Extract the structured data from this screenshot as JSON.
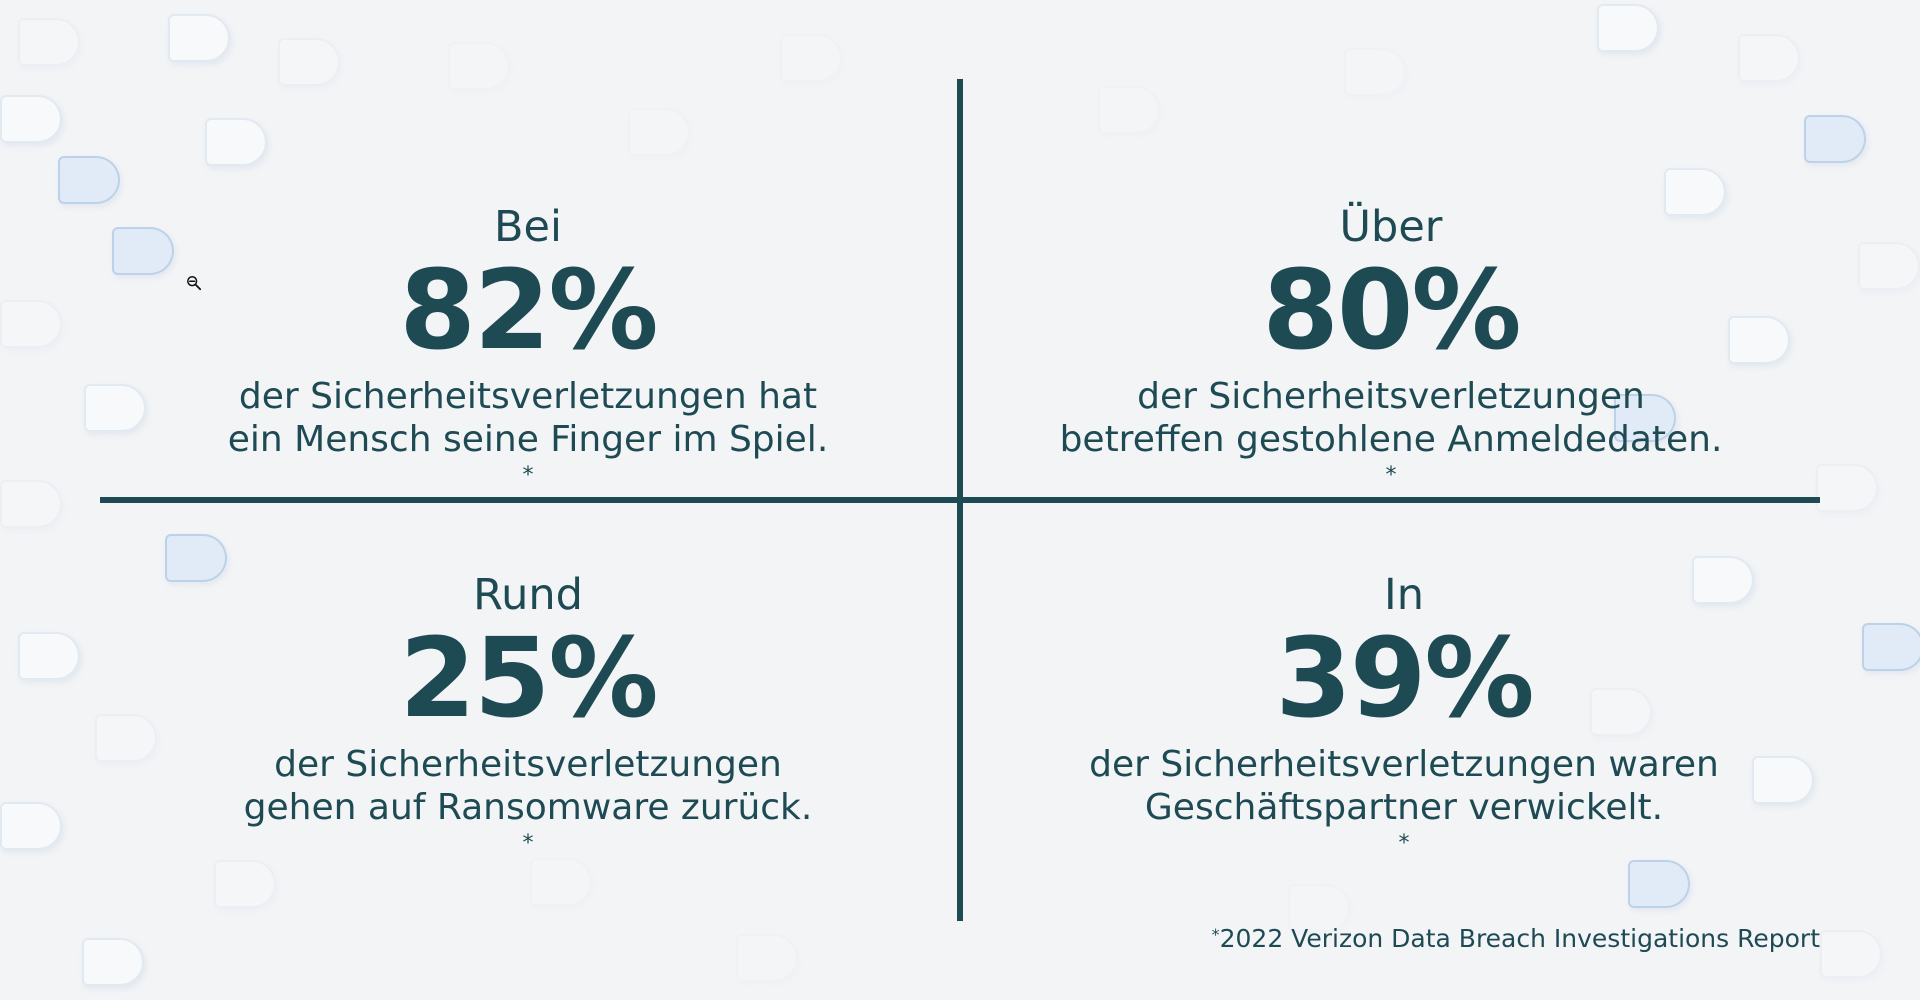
{
  "stats": {
    "top_left": {
      "prefix": "Bei",
      "value": "82%",
      "line1": "der Sicherheitsverletzungen hat",
      "line2": "ein Mensch seine Finger im Spiel.",
      "mark": "*"
    },
    "top_right": {
      "prefix": "Über",
      "value": "80%",
      "line1": "der Sicherheitsverletzungen",
      "line2": "betreffen gestohlene Anmeldedaten.",
      "mark": "*"
    },
    "bottom_left": {
      "prefix": "Rund",
      "value": "25%",
      "line1": "der Sicherheitsverletzungen",
      "line2": "gehen auf Ransomware zurück.",
      "mark": "*"
    },
    "bottom_right": {
      "prefix": "In",
      "value": "39%",
      "line1": "der Sicherheitsverletzungen waren",
      "line2": "Geschäftspartner verwickelt.",
      "mark": "*"
    }
  },
  "footnote": {
    "mark": "*",
    "text": "2022 Verizon Data Breach Investigations Report"
  },
  "cursor": {
    "icon": "zoom-out-icon"
  },
  "colors": {
    "text": "#1e4a54",
    "divider": "#1e4a54",
    "background": "#f3f4f6"
  }
}
